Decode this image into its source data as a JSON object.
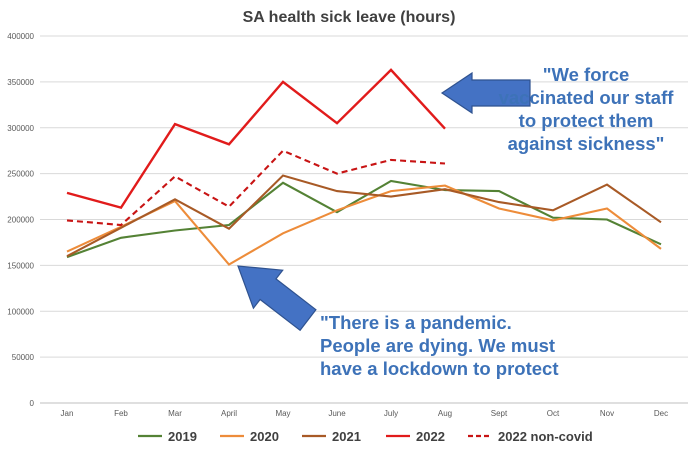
{
  "chart_data": {
    "type": "line",
    "title": "SA health sick leave (hours)",
    "xlabel": "",
    "ylabel": "",
    "categories": [
      "Jan",
      "Feb",
      "Mar",
      "April",
      "May",
      "June",
      "July",
      "Aug",
      "Sept",
      "Oct",
      "Nov",
      "Dec"
    ],
    "ylim": [
      0,
      400000
    ],
    "yticks": [
      "0",
      "50000",
      "100000",
      "150000",
      "200000",
      "250000",
      "300000",
      "350000",
      "400000"
    ],
    "grid": true,
    "legend_position": "bottom",
    "series": [
      {
        "name": "2019",
        "color": "#548235",
        "dashed": false,
        "values": [
          159000,
          180000,
          188000,
          194000,
          240000,
          208000,
          242000,
          232000,
          231000,
          202000,
          200000,
          173000
        ]
      },
      {
        "name": "2020",
        "color": "#ed8c3a",
        "dashed": false,
        "values": [
          165000,
          192000,
          220000,
          151000,
          185000,
          210000,
          231000,
          237000,
          212000,
          199000,
          212000,
          168000
        ]
      },
      {
        "name": "2021",
        "color": "#a85a26",
        "dashed": false,
        "values": [
          160000,
          191000,
          222000,
          190000,
          248000,
          231000,
          225000,
          233000,
          219000,
          210000,
          238000,
          197000
        ]
      },
      {
        "name": "2022",
        "color": "#e11b1b",
        "dashed": false,
        "values": [
          229000,
          213000,
          304000,
          282000,
          350000,
          305000,
          363000,
          299000,
          null,
          null,
          null,
          null
        ]
      },
      {
        "name": "2022 non-covid",
        "color": "#c81414",
        "dashed": true,
        "values": [
          199000,
          194000,
          247000,
          214000,
          275000,
          250000,
          265000,
          261000,
          null,
          null,
          null,
          null
        ]
      }
    ],
    "annotations": [
      {
        "lines": [
          "\"We force",
          "vaccinated our staff",
          "to protect them",
          "against sickness\""
        ],
        "arrow": "left",
        "color": "#4472c4"
      },
      {
        "lines": [
          "\"There is a pandemic.",
          "People are dying. We must",
          "have a lockdown to protect"
        ],
        "arrow": "up-left",
        "color": "#4472c4"
      }
    ]
  }
}
